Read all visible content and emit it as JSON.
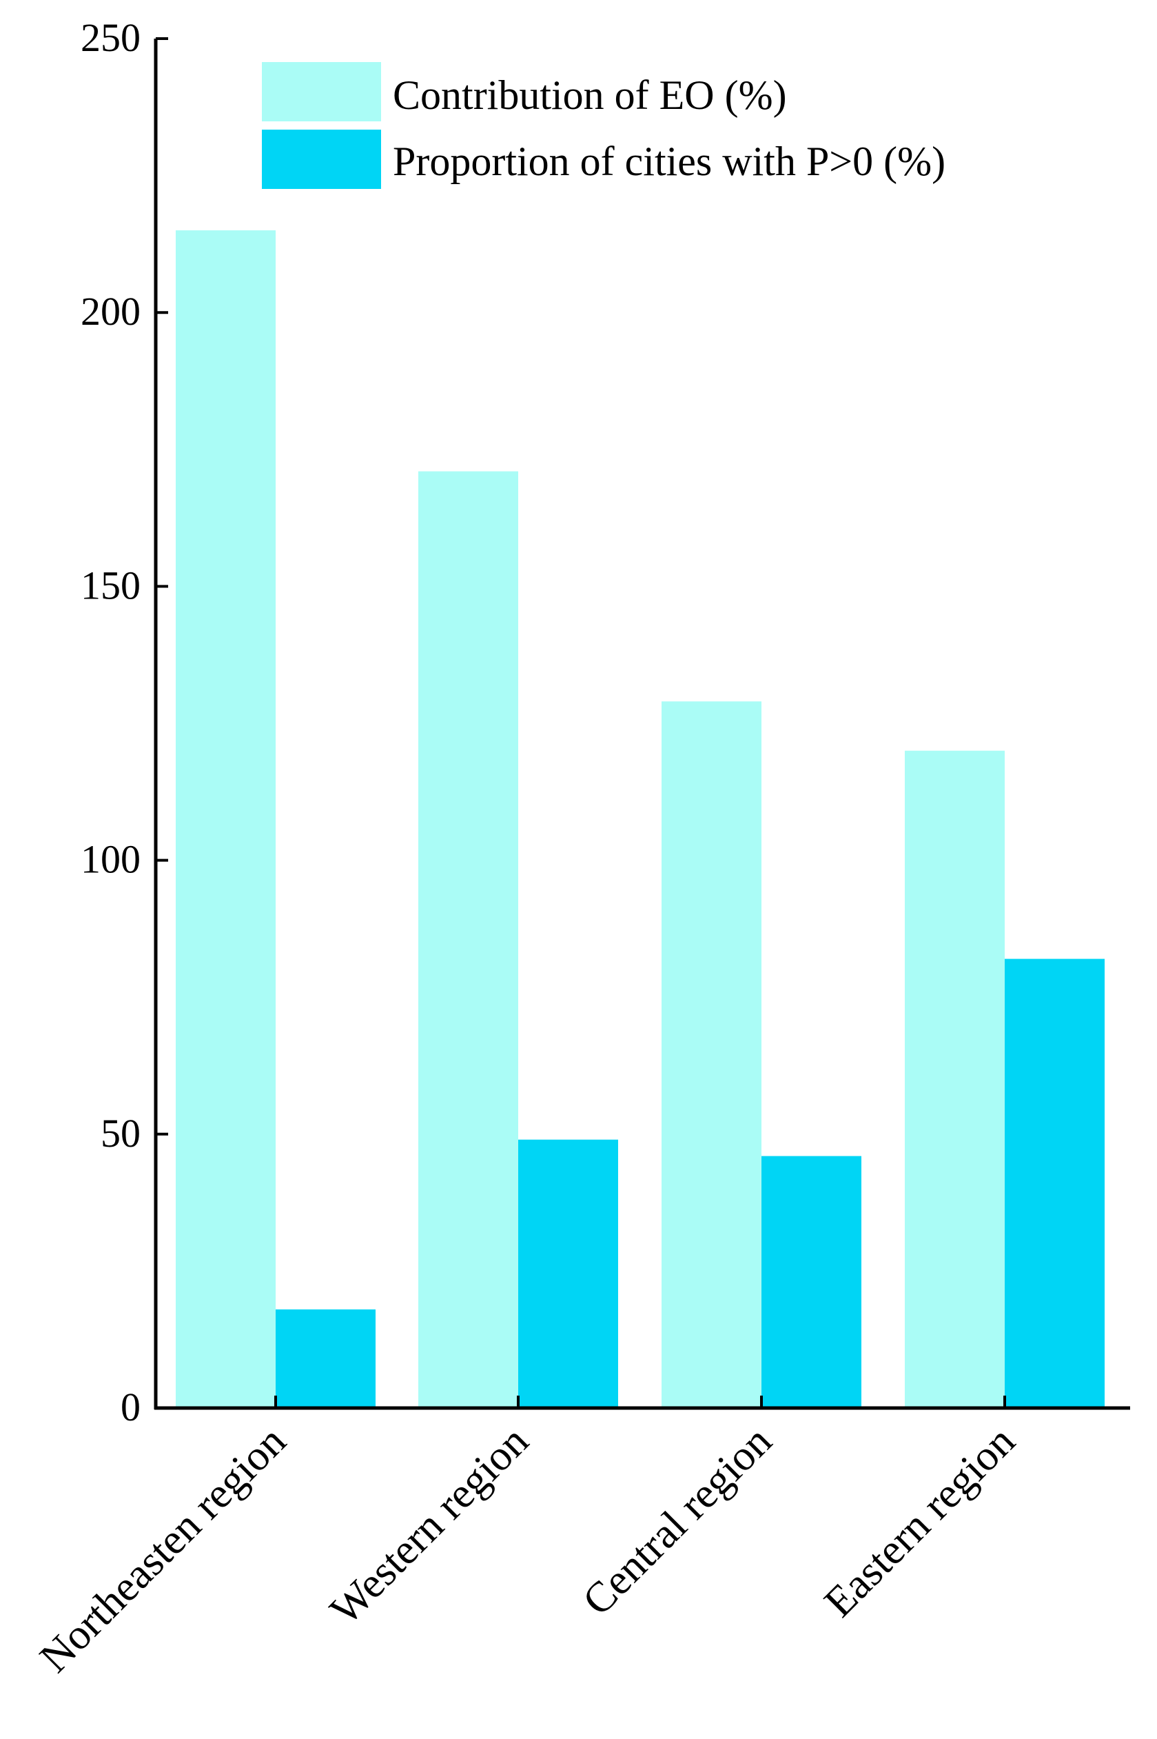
{
  "colors": {
    "series_eo": "#aafcf6",
    "series_p": "#00d5f5",
    "axis": "#000000"
  },
  "chart_data": {
    "type": "bar",
    "title": "",
    "xlabel": "",
    "ylabel": "",
    "ylim": [
      0,
      250
    ],
    "yticks": [
      0,
      50,
      100,
      150,
      200,
      250
    ],
    "grid": false,
    "legend_position": "top-right",
    "categories": [
      "Northeasten region",
      "Western region",
      "Central region",
      "Eastern region"
    ],
    "series": [
      {
        "name": "Contribution of EO (%)",
        "values": [
          215,
          171,
          129,
          120
        ]
      },
      {
        "name": "Proportion of cities with P>0 (%)",
        "values": [
          18,
          49,
          46,
          82
        ]
      }
    ]
  }
}
